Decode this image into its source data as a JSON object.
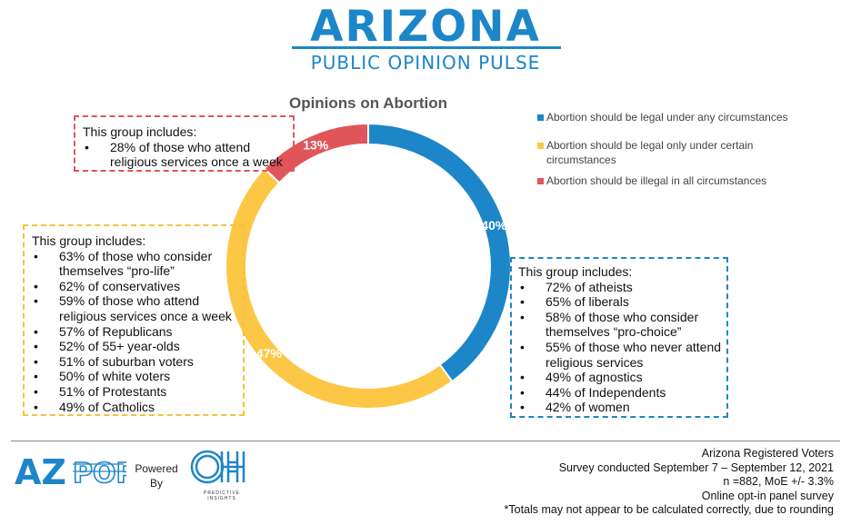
{
  "header": {
    "title": "ARIZONA",
    "subtitle": "PUBLIC OPINION PULSE"
  },
  "chart_data": {
    "type": "pie",
    "title": "Opinions on Abortion",
    "categories": [
      "Abortion should be legal under any circumstances",
      "Abortion should be legal only under certain circumstances",
      "Abortion should be illegal in all circumstances"
    ],
    "values": [
      40,
      47,
      13
    ],
    "data_labels": [
      "40%",
      "47%",
      "13%"
    ],
    "colors": [
      "#1d86c8",
      "#fdc746",
      "#e0555a"
    ],
    "legend_position": "top-right"
  },
  "callouts": {
    "red": {
      "heading": "This group includes:",
      "items": [
        "28% of those who attend religious services once a week"
      ]
    },
    "yellow": {
      "heading": "This group includes:",
      "items": [
        "63% of those who consider themselves “pro-life”",
        "62% of conservatives",
        "59% of those who attend religious services once a week",
        "57% of Republicans",
        "52% of 55+ year-olds",
        "51% of suburban voters",
        "50% of white voters",
        "51% of Protestants",
        "49% of Catholics"
      ]
    },
    "blue": {
      "heading": "This group includes:",
      "items": [
        "72% of atheists",
        "65% of liberals",
        "58% of those who consider themselves “pro-choice”",
        "55% of those who never attend religious services",
        "49% of agnostics",
        "44% of Independents",
        "42% of women"
      ]
    }
  },
  "footer": {
    "azpop_logo": "AZPOP",
    "powered_by": "Powered By",
    "partner_logo": "OH",
    "partner_name": "PREDICTIVE INSIGHTS",
    "notes": [
      "Arizona Registered Voters",
      "Survey conducted September 7 – September 12, 2021",
      "n =882, MoE +/- 3.3%",
      "Online opt-in panel survey",
      "*Totals may not appear to be calculated correctly, due to rounding"
    ]
  }
}
